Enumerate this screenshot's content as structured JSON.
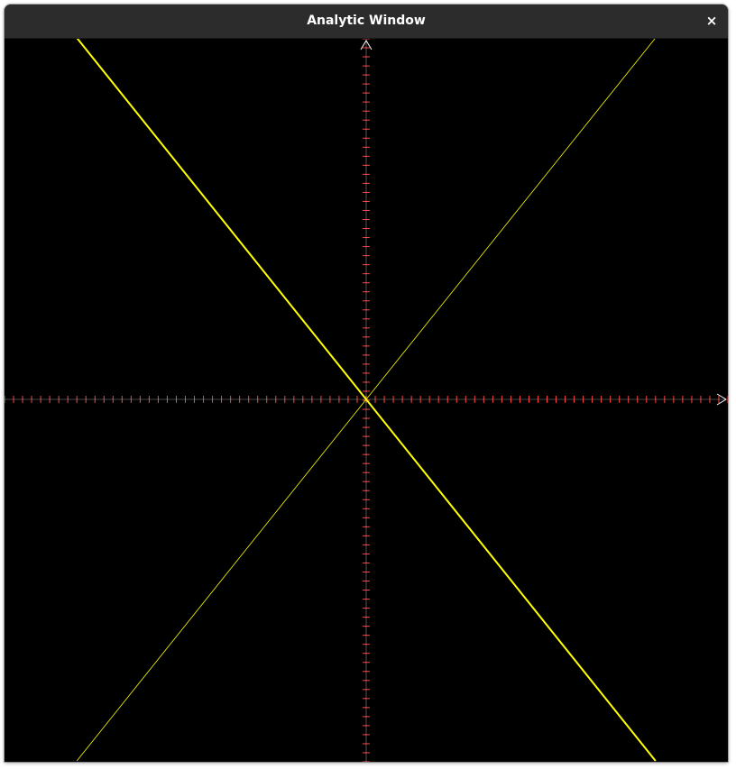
{
  "window": {
    "title": "Analytic Window",
    "close_glyph": "×",
    "close_icon": "close-icon"
  },
  "colors": {
    "background": "#000000",
    "titlebar": "#2c2c2c",
    "axis": "#ffffff",
    "tick": "#ff4040",
    "curve": "#ffff00"
  },
  "chart_data": {
    "type": "line",
    "title": "",
    "xlabel": "",
    "ylabel": "",
    "xlim": [
      -1,
      1
    ],
    "ylim": [
      -1,
      1
    ],
    "x_tick_count": 80,
    "y_tick_count": 80,
    "series": [
      {
        "x": [
          -0.8,
          0.0,
          0.8
        ],
        "y": [
          1.0,
          0.0,
          -1.0
        ],
        "style": "thick"
      },
      {
        "x": [
          -0.8,
          0.0,
          0.8
        ],
        "y": [
          -1.0,
          0.0,
          1.0
        ],
        "style": "thin"
      }
    ]
  }
}
